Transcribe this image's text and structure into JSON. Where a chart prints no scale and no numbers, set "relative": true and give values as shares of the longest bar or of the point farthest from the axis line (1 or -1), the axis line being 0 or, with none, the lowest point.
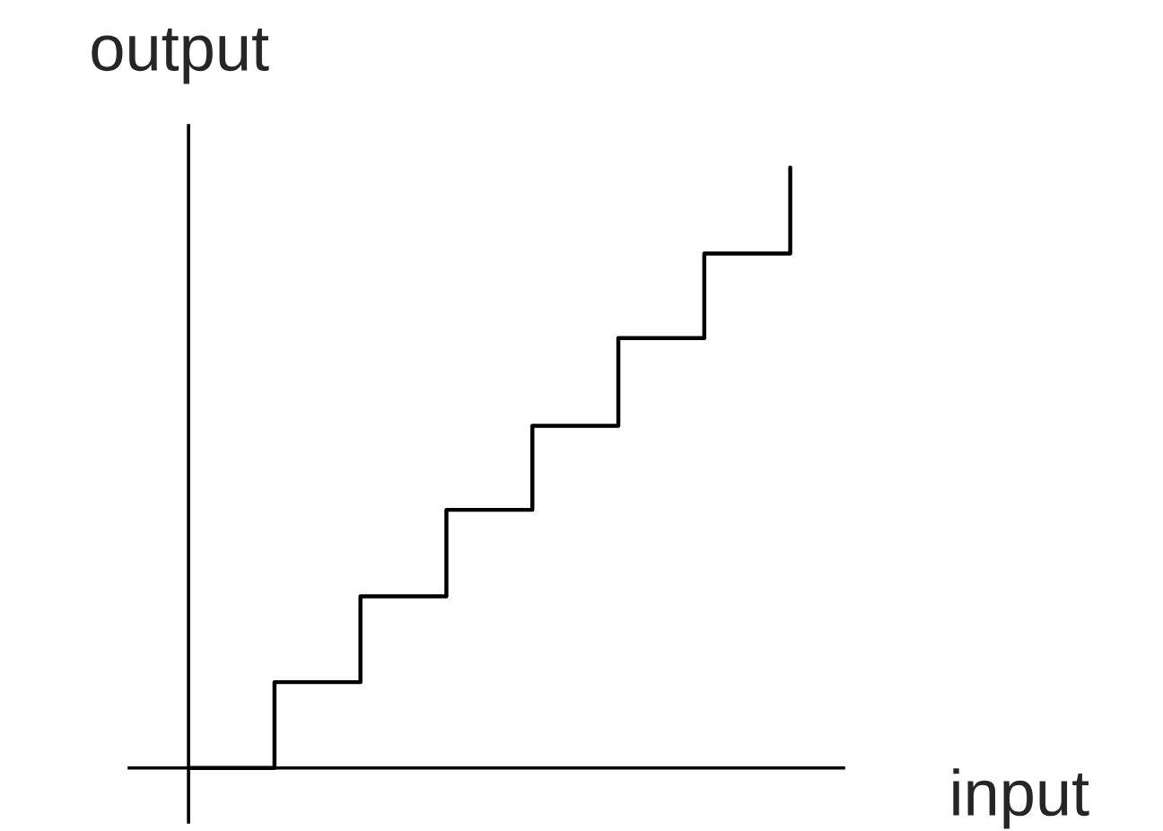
{
  "chart_data": {
    "type": "step",
    "relative": true,
    "xlabel": "input",
    "ylabel": "output",
    "categories": [
      null,
      null,
      null,
      null,
      null,
      null,
      null,
      null
    ],
    "series": [
      {
        "color": "#000000",
        "values": [
          0,
          0.143,
          0.286,
          0.43,
          0.57,
          0.716,
          0.857,
          1
        ]
      }
    ]
  }
}
